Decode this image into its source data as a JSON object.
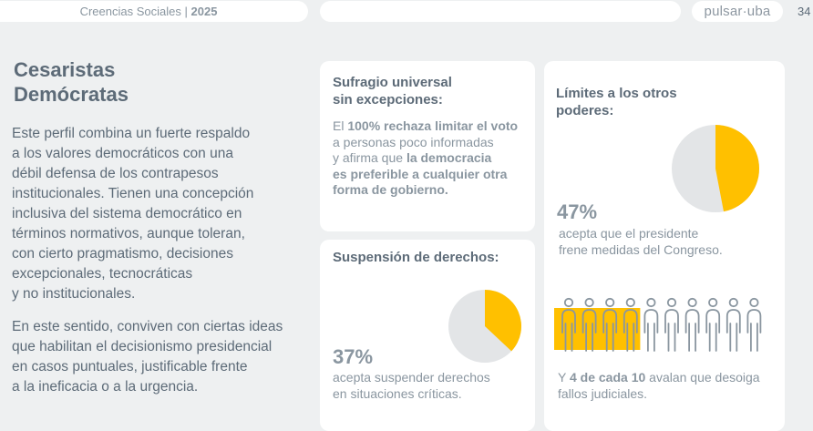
{
  "header": {
    "section_label": "Creencias Sociales",
    "separator": "|",
    "year": "2025",
    "logo_text": "pulsar·uba",
    "page_number": "34"
  },
  "main": {
    "title_line1": "Cesaristas",
    "title_line2": "Demócratas",
    "paragraph1_lines": [
      "Este perfil combina un fuerte respaldo",
      "a los valores democráticos con una",
      "débil defensa de los contrapesos",
      "institucionales. Tienen una concepción",
      "inclusiva del sistema democrático en",
      "términos normativos, aunque toleran,",
      "con cierto pragmatismo, decisiones",
      "excepcionales, tecnocráticas",
      "y no institucionales."
    ],
    "paragraph2_lines": [
      "En este sentido, conviven con ciertas ideas",
      "que habilitan el decisionismo presidencial",
      "en casos puntuales, justificable frente",
      "a la ineficacia o a la urgencia."
    ]
  },
  "cards": {
    "sufragio": {
      "title_line1": "Sufragio universal",
      "title_line2": "sin excepciones:",
      "t1": "El ",
      "b1": "100% rechaza limitar el voto",
      "t2": "a personas poco informadas",
      "t3": "y afirma que ",
      "b2": "la democracia",
      "b3": "es preferible a cualquier otra",
      "b4": "forma de gobierno."
    },
    "suspension": {
      "title": "Suspensión de derechos:",
      "percent_label": "37%",
      "caption_line1": "acepta suspender derechos",
      "caption_line2": "en situaciones críticas.",
      "value": 37
    },
    "limites": {
      "title_line1": "Límites a los otros",
      "title_line2": "poderes:",
      "percent_label": "47%",
      "caption_line1": "acepta que el presidente",
      "caption_line2": "frene medidas del Congreso.",
      "value": 47,
      "people_total": 10,
      "people_highlighted": 4,
      "people_caption_pre": "Y ",
      "people_caption_bold": "4 de cada 10",
      "people_caption_post": " avalan que desoiga",
      "people_caption_line2": "fallos judiciales."
    }
  },
  "colors": {
    "accent": "#ffc000",
    "pie_rest": "#e3e5e7",
    "text_dark": "#5d6b78",
    "text_light": "#8a96a0",
    "background": "#eef0f1"
  }
}
